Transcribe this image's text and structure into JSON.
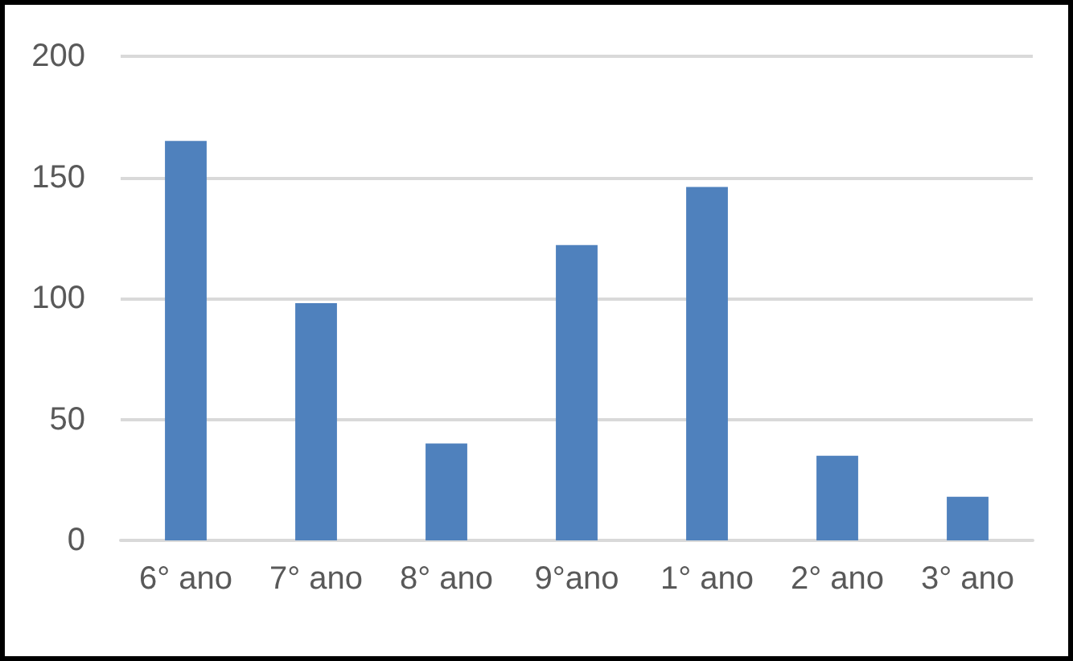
{
  "chart_data": {
    "type": "bar",
    "categories": [
      "6° ano",
      "7° ano",
      "8° ano",
      "9°ano",
      "1° ano",
      "2° ano",
      "3° ano"
    ],
    "values": [
      165,
      98,
      40,
      122,
      146,
      35,
      18
    ],
    "color": "#4f81bd",
    "ylim": [
      0,
      200
    ],
    "yticks": [
      0,
      50,
      100,
      150,
      200
    ],
    "grid": "y"
  }
}
